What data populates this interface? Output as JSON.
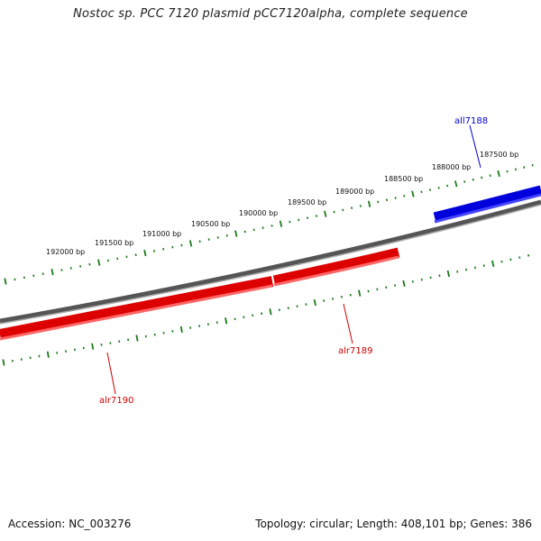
{
  "title": "Nostoc sp. PCC 7120 plasmid pCC7120alpha, complete sequence",
  "footer": {
    "accession": "Accession: NC_003276",
    "topology": "Topology: circular; Length: 408,101 bp; Genes: 386"
  },
  "colors": {
    "forward_gene": "#ee0000",
    "reverse_gene": "#0000dd",
    "backbone": "#777777",
    "tick": "#1a7a1a"
  },
  "scale_labels": [
    "187500 bp",
    "188000 bp",
    "188500 bp",
    "189000 bp",
    "189500 bp",
    "190000 bp",
    "190500 bp",
    "191000 bp",
    "191500 bp",
    "192000 bp"
  ],
  "genes": [
    {
      "name": "all7188",
      "strand": "reverse"
    },
    {
      "name": "alr7189",
      "strand": "forward"
    },
    {
      "name": "alr7190",
      "strand": "forward"
    }
  ]
}
